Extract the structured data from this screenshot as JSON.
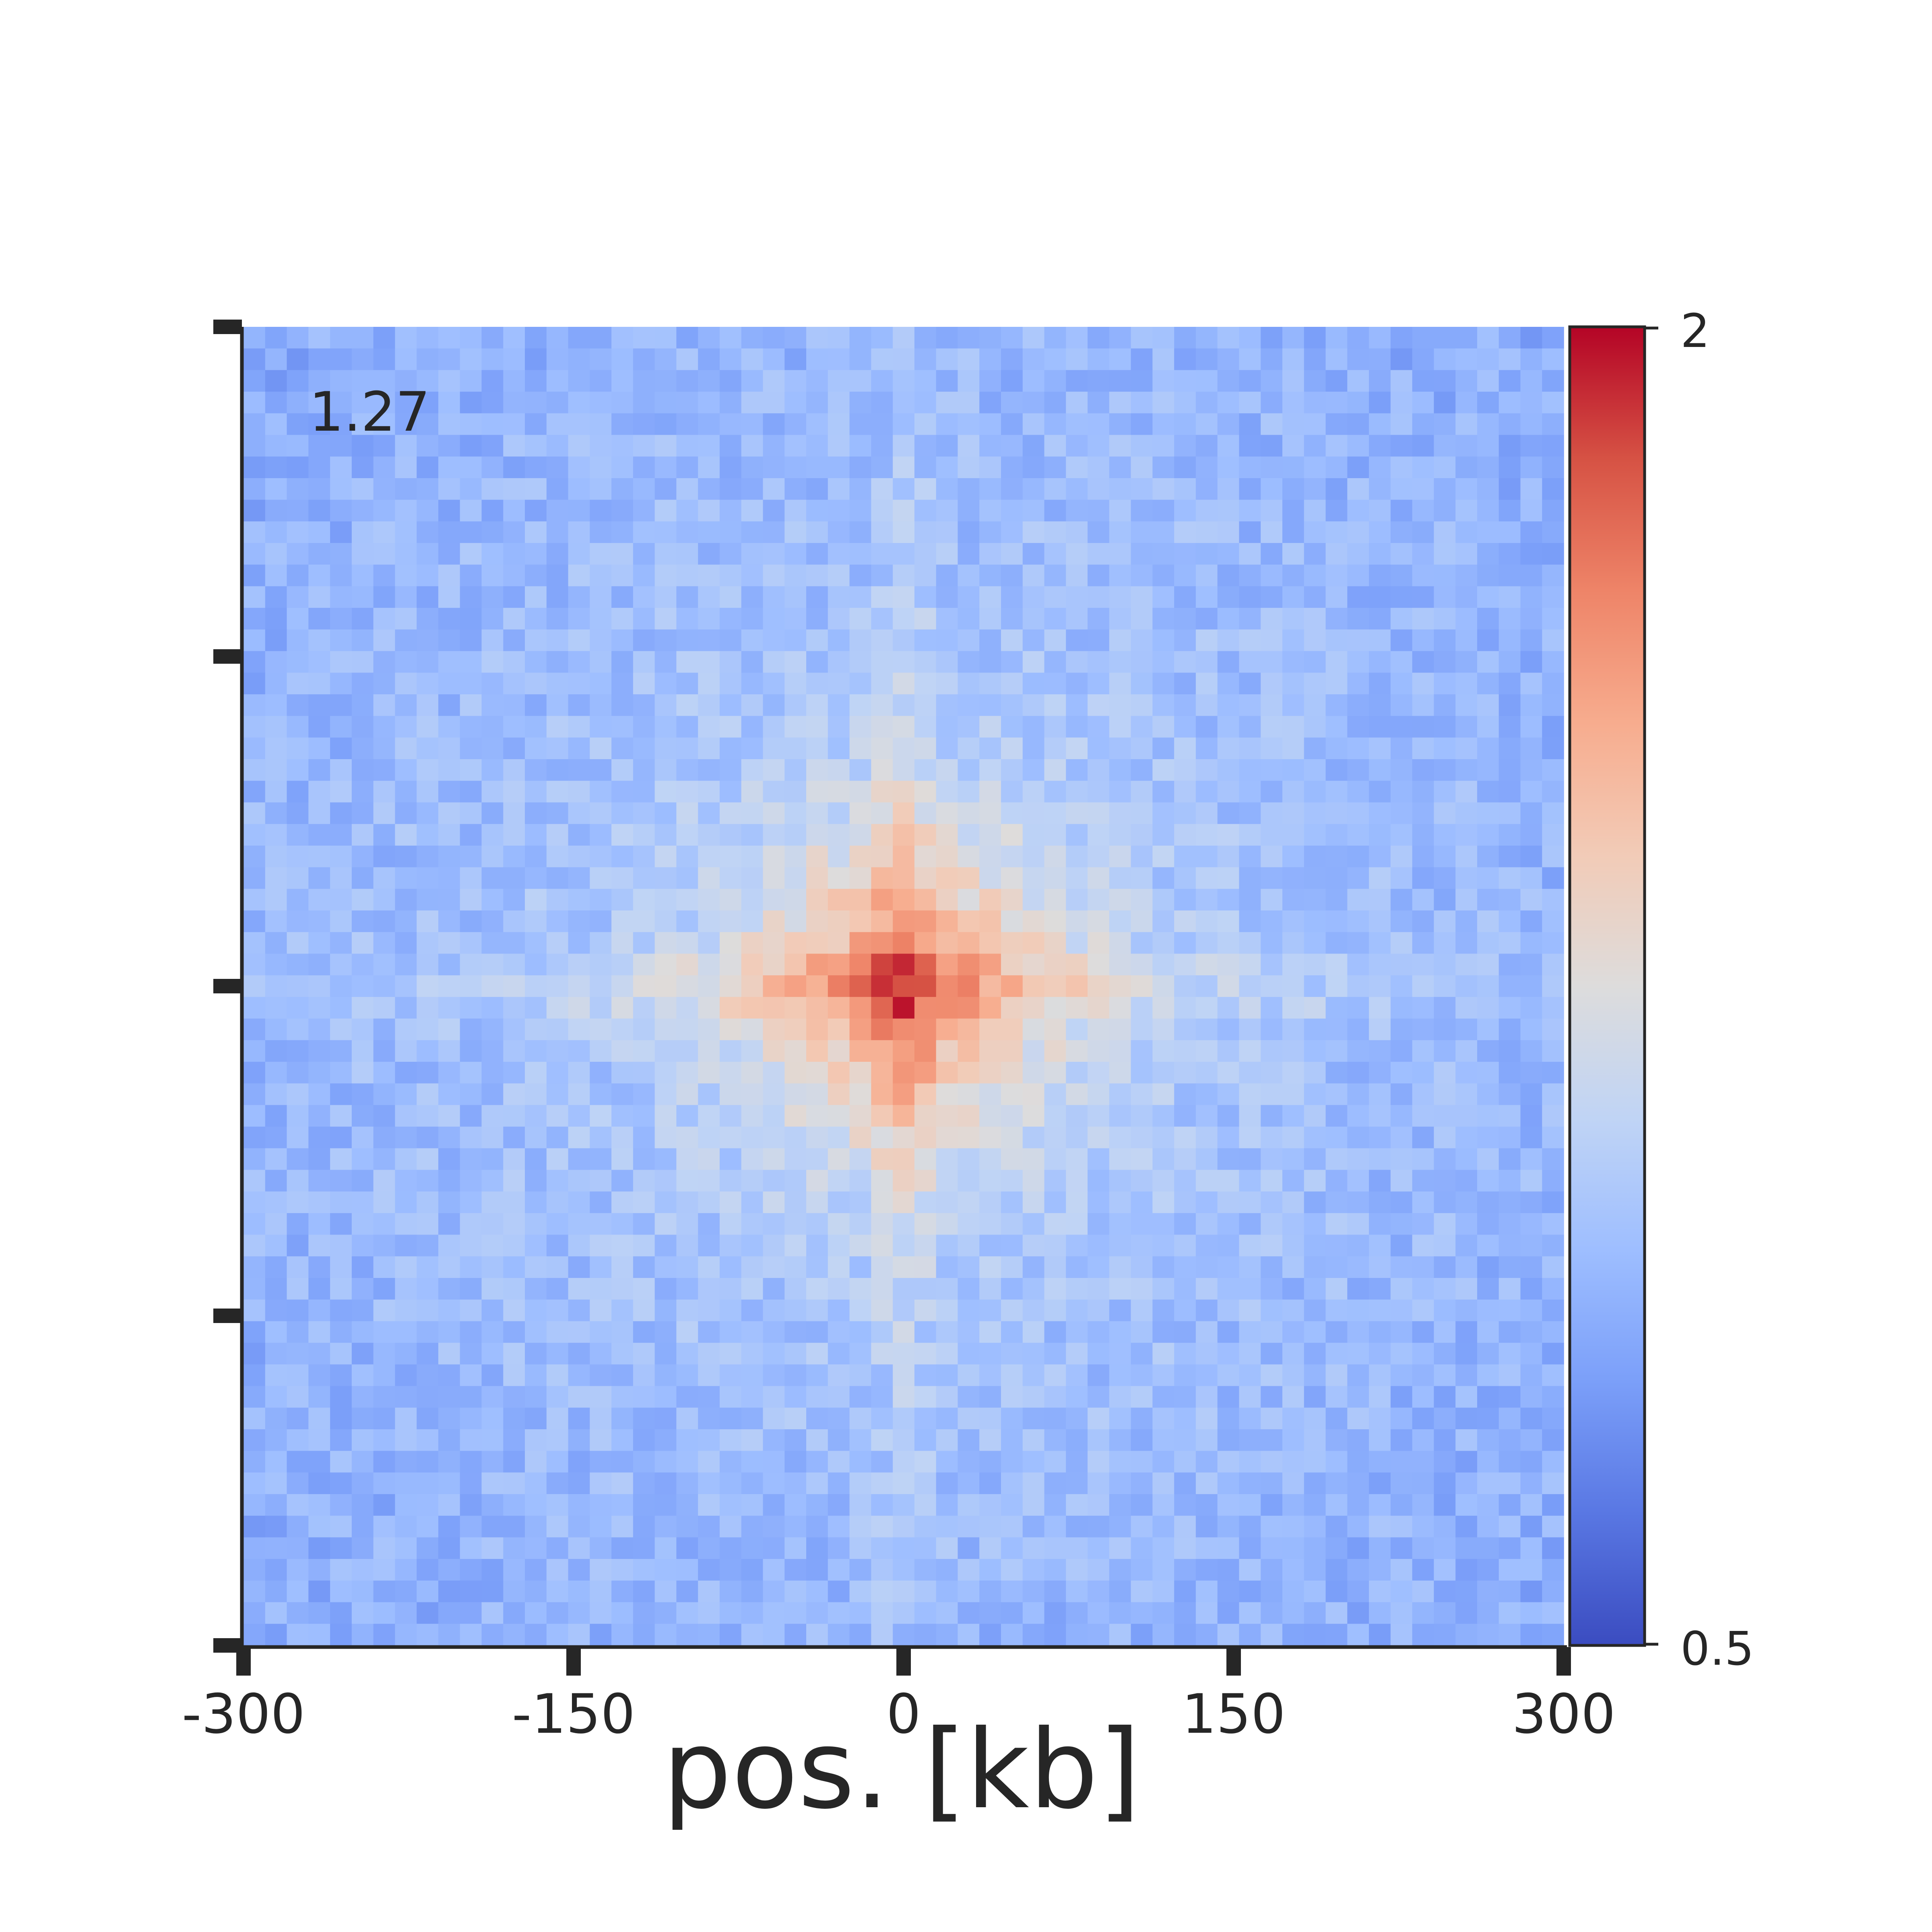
{
  "chart_data": {
    "type": "heatmap",
    "title": "",
    "xlabel": "pos. [kb]",
    "ylabel": "",
    "xlim": [
      -300,
      300
    ],
    "ylim": [
      -300,
      300
    ],
    "x_ticks": [
      "-300",
      "-150",
      "0",
      "150",
      "300"
    ],
    "y_ticks": [
      -300,
      -150,
      0,
      150,
      300
    ],
    "grid": false,
    "annotation": "1.27",
    "annotation_position": "top-left",
    "bins": 61,
    "bin_size_kb": 10,
    "center_value": 1.55,
    "background_value": 1.0,
    "colormap": "coolwarm",
    "colorbar": {
      "min": 0.5,
      "max": 2,
      "min_label": "0.5",
      "max_label": "2",
      "stops": [
        {
          "v": 0.0,
          "color": "#3b4cc0"
        },
        {
          "v": 0.125,
          "color": "#5977e3"
        },
        {
          "v": 0.25,
          "color": "#7b9ff9"
        },
        {
          "v": 0.375,
          "color": "#9ebeff"
        },
        {
          "v": 0.5,
          "color": "#c0d4f5"
        },
        {
          "v": 0.625,
          "color": "#dddcdc"
        },
        {
          "v": 0.75,
          "color": "#f2cbb7"
        },
        {
          "v": 0.875,
          "color": "#f7ac8e"
        },
        {
          "v": 1.0,
          "color": "#ee8468"
        },
        {
          "v": 1.125,
          "color": "#d65244"
        },
        {
          "v": 1.25,
          "color": "#b40426"
        }
      ]
    }
  }
}
